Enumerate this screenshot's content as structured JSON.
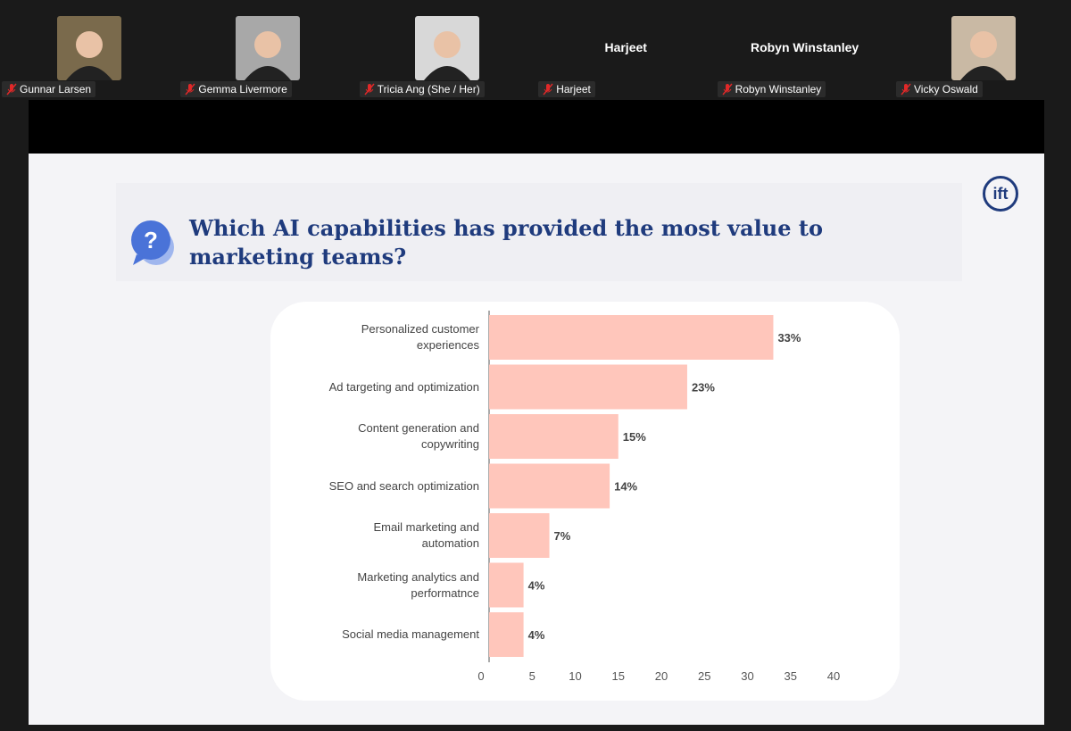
{
  "participants": [
    {
      "name": "Gunnar Larsen",
      "video": true
    },
    {
      "name": "Gemma Livermore",
      "video": true
    },
    {
      "name": "Tricia Ang (She / Her)",
      "video": true
    },
    {
      "name": "Harjeet",
      "video": false
    },
    {
      "name": "Robyn Winstanley",
      "video": false
    },
    {
      "name": "Vicky Oswald",
      "video": true
    }
  ],
  "slide": {
    "logo": "ift"
  },
  "chart_data": {
    "type": "bar",
    "orientation": "horizontal",
    "title": "Which AI  capabilities has provided the most value to marketing teams?",
    "categories": [
      "Personalized customer experiences",
      "Ad targeting and optimization",
      "Content generation and copywriting",
      "SEO and search optimization",
      "Email marketing and automation",
      "Marketing analytics and performatnce",
      "Social media management"
    ],
    "values": [
      33,
      23,
      15,
      14,
      7,
      4,
      4
    ],
    "value_labels": [
      "33%",
      "23%",
      "15%",
      "14%",
      "7%",
      "4%",
      "4%"
    ],
    "color": "#ffc6bb",
    "xlim": [
      0,
      40
    ],
    "xticks": [
      0,
      5,
      10,
      15,
      20,
      25,
      30,
      35,
      40
    ],
    "grid": false
  }
}
